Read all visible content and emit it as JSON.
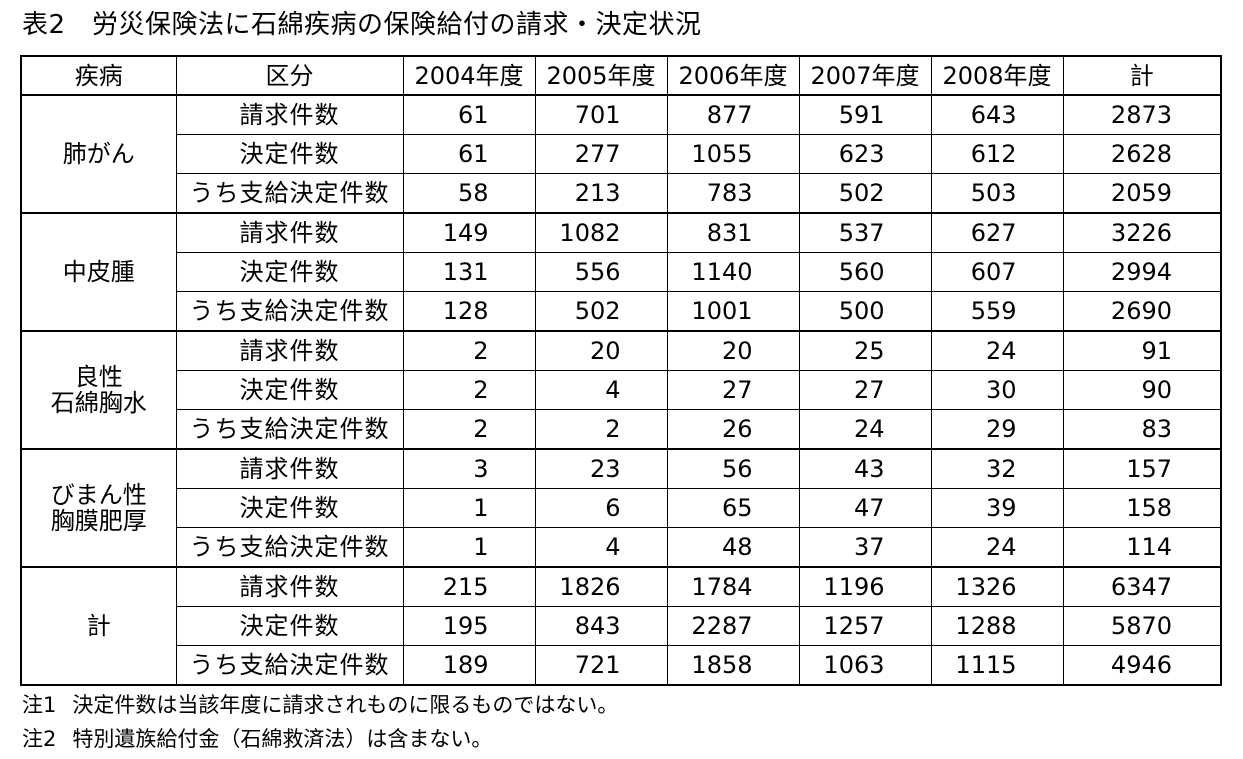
{
  "title": "表2　労災保険法に石綿疾病の保険給付の請求・決定状況",
  "headers": {
    "disease": "疾病",
    "category": "区分",
    "years": [
      "2004年度",
      "2005年度",
      "2006年度",
      "2007年度",
      "2008年度"
    ],
    "total": "計"
  },
  "categories": [
    "請求件数",
    "決定件数",
    "うち支給決定件数"
  ],
  "groups": [
    {
      "name_lines": [
        "肺がん"
      ],
      "rows": [
        [
          61,
          701,
          877,
          591,
          643,
          2873
        ],
        [
          61,
          277,
          1055,
          623,
          612,
          2628
        ],
        [
          58,
          213,
          783,
          502,
          503,
          2059
        ]
      ]
    },
    {
      "name_lines": [
        "中皮腫"
      ],
      "rows": [
        [
          149,
          1082,
          831,
          537,
          627,
          3226
        ],
        [
          131,
          556,
          1140,
          560,
          607,
          2994
        ],
        [
          128,
          502,
          1001,
          500,
          559,
          2690
        ]
      ]
    },
    {
      "name_lines": [
        "良性",
        "石綿胸水"
      ],
      "rows": [
        [
          2,
          20,
          20,
          25,
          24,
          91
        ],
        [
          2,
          4,
          27,
          27,
          30,
          90
        ],
        [
          2,
          2,
          26,
          24,
          29,
          83
        ]
      ]
    },
    {
      "name_lines": [
        "びまん性",
        "胸膜肥厚"
      ],
      "rows": [
        [
          3,
          23,
          56,
          43,
          32,
          157
        ],
        [
          1,
          6,
          65,
          47,
          39,
          158
        ],
        [
          1,
          4,
          48,
          37,
          24,
          114
        ]
      ]
    },
    {
      "name_lines": [
        "計"
      ],
      "rows": [
        [
          215,
          1826,
          1784,
          1196,
          1326,
          6347
        ],
        [
          195,
          843,
          2287,
          1257,
          1288,
          5870
        ],
        [
          189,
          721,
          1858,
          1063,
          1115,
          4946
        ]
      ]
    }
  ],
  "notes": [
    {
      "tag": "注1",
      "text": "決定件数は当該年度に請求されものに限るものではない。"
    },
    {
      "tag": "注2",
      "text": "特別遺族給付金（石綿救済法）は含まない。"
    }
  ]
}
